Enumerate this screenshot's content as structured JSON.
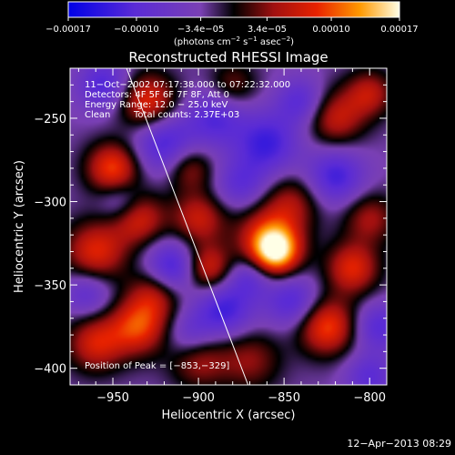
{
  "chart_data": {
    "type": "heatmap",
    "title": "Reconstructed RHESSI Image",
    "xlabel": "Heliocentric X (arcsec)",
    "ylabel": "Heliocentric Y (arcsec)",
    "xlim": [
      -975,
      -790
    ],
    "ylim": [
      -410,
      -220
    ],
    "x_ticks": [
      {
        "value": -950,
        "label": "−950"
      },
      {
        "value": -900,
        "label": "−900"
      },
      {
        "value": -850,
        "label": "−850"
      },
      {
        "value": -800,
        "label": "−800"
      }
    ],
    "y_ticks": [
      {
        "value": -250,
        "label": "−250"
      },
      {
        "value": -300,
        "label": "−300"
      },
      {
        "value": -350,
        "label": "−350"
      },
      {
        "value": -400,
        "label": "−400"
      }
    ],
    "colorbar": {
      "range": [
        -0.00017,
        0.00017
      ],
      "tick_labels": [
        {
          "value": -0.00017,
          "label": "−0.00017"
        },
        {
          "value": -0.0001,
          "label": "−0.00010"
        },
        {
          "value": -3.4e-05,
          "label": "−3.4e−05"
        },
        {
          "value": 3.4e-05,
          "label": "3.4e−05"
        },
        {
          "value": 0.0001,
          "label": "0.00010"
        },
        {
          "value": 0.00017,
          "label": "0.00017"
        }
      ],
      "units": {
        "main": "(photons cm",
        "exp1": "−2",
        "mid": " s",
        "exp2": "−1",
        "end": " asec",
        "exp3": "−2",
        "close": ")"
      }
    },
    "annotations": {
      "time": "11−Oct−2002 07:17:38.000 to 07:22:32.000",
      "detectors": "Detectors: 4F 5F 6F 7F 8F, Att 0",
      "energy": "Energy Range: 12.0 − 25.0 keV",
      "method": "Clean",
      "counts": "Total counts: 2.37E+03",
      "peak": "Position of Peak = [−853,−329]"
    },
    "peak": {
      "x": -853,
      "y": -329
    },
    "limb_line": [
      [
        -942,
        -220
      ],
      [
        -871,
        -410
      ]
    ],
    "blobs": [
      {
        "x": -855,
        "y": -330,
        "a": 1.0,
        "s": 10
      },
      {
        "x": -860,
        "y": -320,
        "a": 0.55,
        "s": 14
      },
      {
        "x": -950,
        "y": -280,
        "a": 0.75,
        "s": 11
      },
      {
        "x": -930,
        "y": -240,
        "a": 0.7,
        "s": 12
      },
      {
        "x": -960,
        "y": -330,
        "a": 0.65,
        "s": 13
      },
      {
        "x": -935,
        "y": -310,
        "a": 0.6,
        "s": 11
      },
      {
        "x": -900,
        "y": -310,
        "a": 0.55,
        "s": 11
      },
      {
        "x": -905,
        "y": -280,
        "a": 0.45,
        "s": 10
      },
      {
        "x": -895,
        "y": -340,
        "a": 0.65,
        "s": 10
      },
      {
        "x": -925,
        "y": -355,
        "a": 0.5,
        "s": 11
      },
      {
        "x": -935,
        "y": -375,
        "a": 0.7,
        "s": 12
      },
      {
        "x": -960,
        "y": -385,
        "a": 0.6,
        "s": 12
      },
      {
        "x": -900,
        "y": -395,
        "a": 0.45,
        "s": 12
      },
      {
        "x": -825,
        "y": -375,
        "a": 0.75,
        "s": 12
      },
      {
        "x": -810,
        "y": -340,
        "a": 0.65,
        "s": 11
      },
      {
        "x": -800,
        "y": -310,
        "a": 0.45,
        "s": 11
      },
      {
        "x": -820,
        "y": -250,
        "a": 0.55,
        "s": 12
      },
      {
        "x": -800,
        "y": -235,
        "a": 0.5,
        "s": 10
      },
      {
        "x": -870,
        "y": -395,
        "a": 0.4,
        "s": 13
      },
      {
        "x": -845,
        "y": -300,
        "a": 0.4,
        "s": 12
      },
      {
        "x": -880,
        "y": -230,
        "a": 0.35,
        "s": 10
      },
      {
        "x": -955,
        "y": -230,
        "a": -0.5,
        "s": 11
      },
      {
        "x": -920,
        "y": -265,
        "a": -0.55,
        "s": 13
      },
      {
        "x": -890,
        "y": -250,
        "a": -0.45,
        "s": 12
      },
      {
        "x": -860,
        "y": -265,
        "a": -0.55,
        "s": 13
      },
      {
        "x": -840,
        "y": -240,
        "a": -0.45,
        "s": 10
      },
      {
        "x": -820,
        "y": -285,
        "a": -0.55,
        "s": 12
      },
      {
        "x": -875,
        "y": -290,
        "a": -0.4,
        "s": 11
      },
      {
        "x": -915,
        "y": -340,
        "a": -0.65,
        "s": 11
      },
      {
        "x": -885,
        "y": -365,
        "a": -0.55,
        "s": 12
      },
      {
        "x": -845,
        "y": -360,
        "a": -0.5,
        "s": 11
      },
      {
        "x": -795,
        "y": -375,
        "a": -0.45,
        "s": 10
      },
      {
        "x": -800,
        "y": -405,
        "a": -0.4,
        "s": 10
      },
      {
        "x": -870,
        "y": -345,
        "a": -0.4,
        "s": 9
      },
      {
        "x": -965,
        "y": -355,
        "a": -0.4,
        "s": 10
      },
      {
        "x": -945,
        "y": -300,
        "a": -0.35,
        "s": 9
      },
      {
        "x": -905,
        "y": -380,
        "a": -0.35,
        "s": 10
      }
    ]
  },
  "footer": {
    "timestamp": "12−Apr−2013 08:29"
  }
}
